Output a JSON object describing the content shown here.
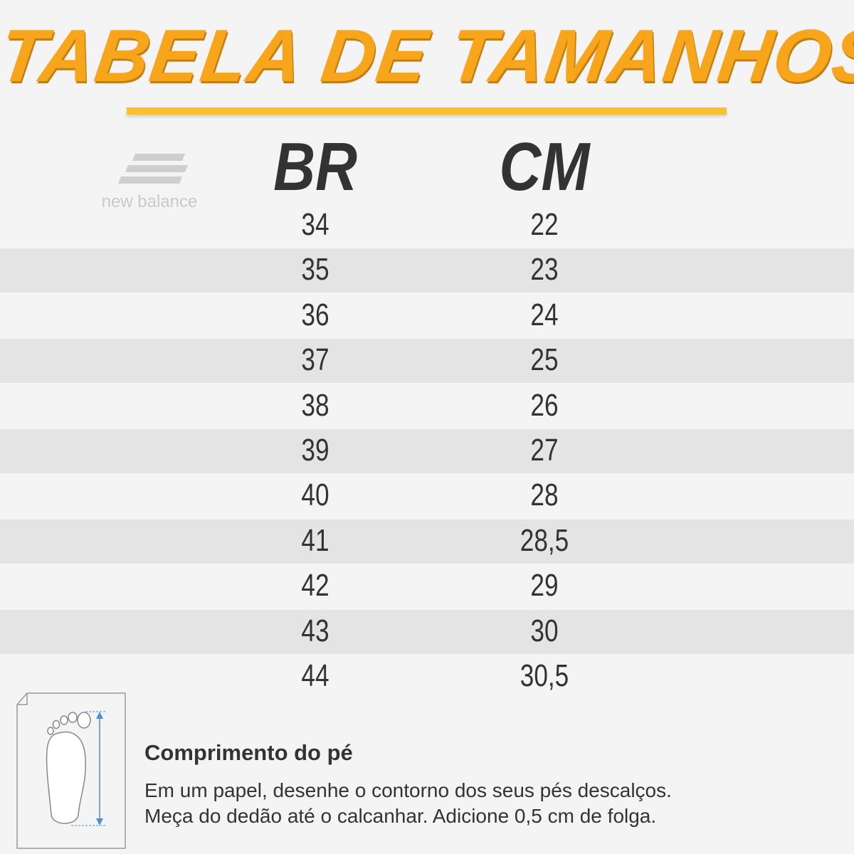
{
  "header": {
    "title": "TABELA DE TAMANHOS",
    "brand": "new balance"
  },
  "table": {
    "headers": [
      "BR",
      "CM"
    ],
    "rows": [
      [
        "34",
        "22"
      ],
      [
        "35",
        "23"
      ],
      [
        "36",
        "24"
      ],
      [
        "37",
        "25"
      ],
      [
        "38",
        "26"
      ],
      [
        "39",
        "27"
      ],
      [
        "40",
        "28"
      ],
      [
        "41",
        "28,5"
      ],
      [
        "42",
        "29"
      ],
      [
        "43",
        "30"
      ],
      [
        "44",
        "30,5"
      ]
    ]
  },
  "instructions": {
    "title": "Comprimento do pé",
    "lines": [
      "Em um papel, desenhe o contorno dos seus pés descalços.",
      "Meça do dedão até o calcanhar. Adicione 0,5 cm de folga."
    ]
  }
}
